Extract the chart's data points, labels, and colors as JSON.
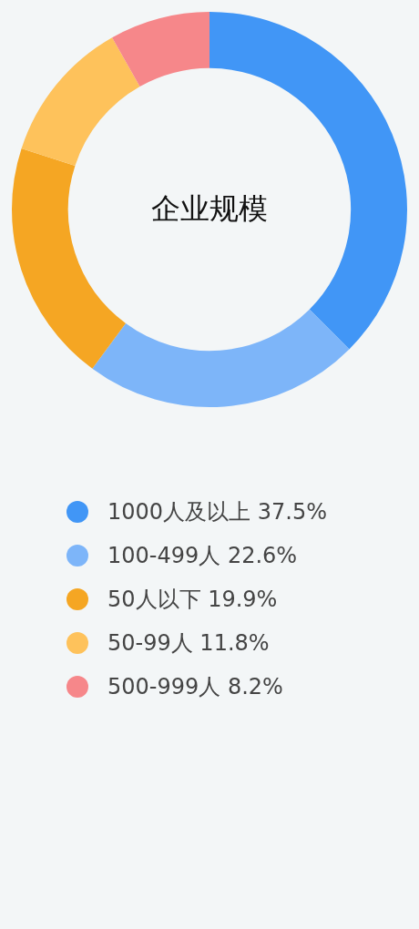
{
  "chart_data": {
    "type": "donut",
    "title": "企业规模",
    "categories": [
      "1000人及以上",
      "100-499人",
      "50人以下",
      "50-99人",
      "500-999人"
    ],
    "values": [
      37.5,
      22.6,
      19.9,
      11.8,
      8.2
    ],
    "value_labels": [
      "37.5%",
      "22.6%",
      "19.9%",
      "11.8%",
      "8.2%"
    ],
    "colors": [
      "#4196f6",
      "#7db5f9",
      "#f5a623",
      "#fec25b",
      "#f6878a"
    ],
    "legend": "bottom"
  }
}
